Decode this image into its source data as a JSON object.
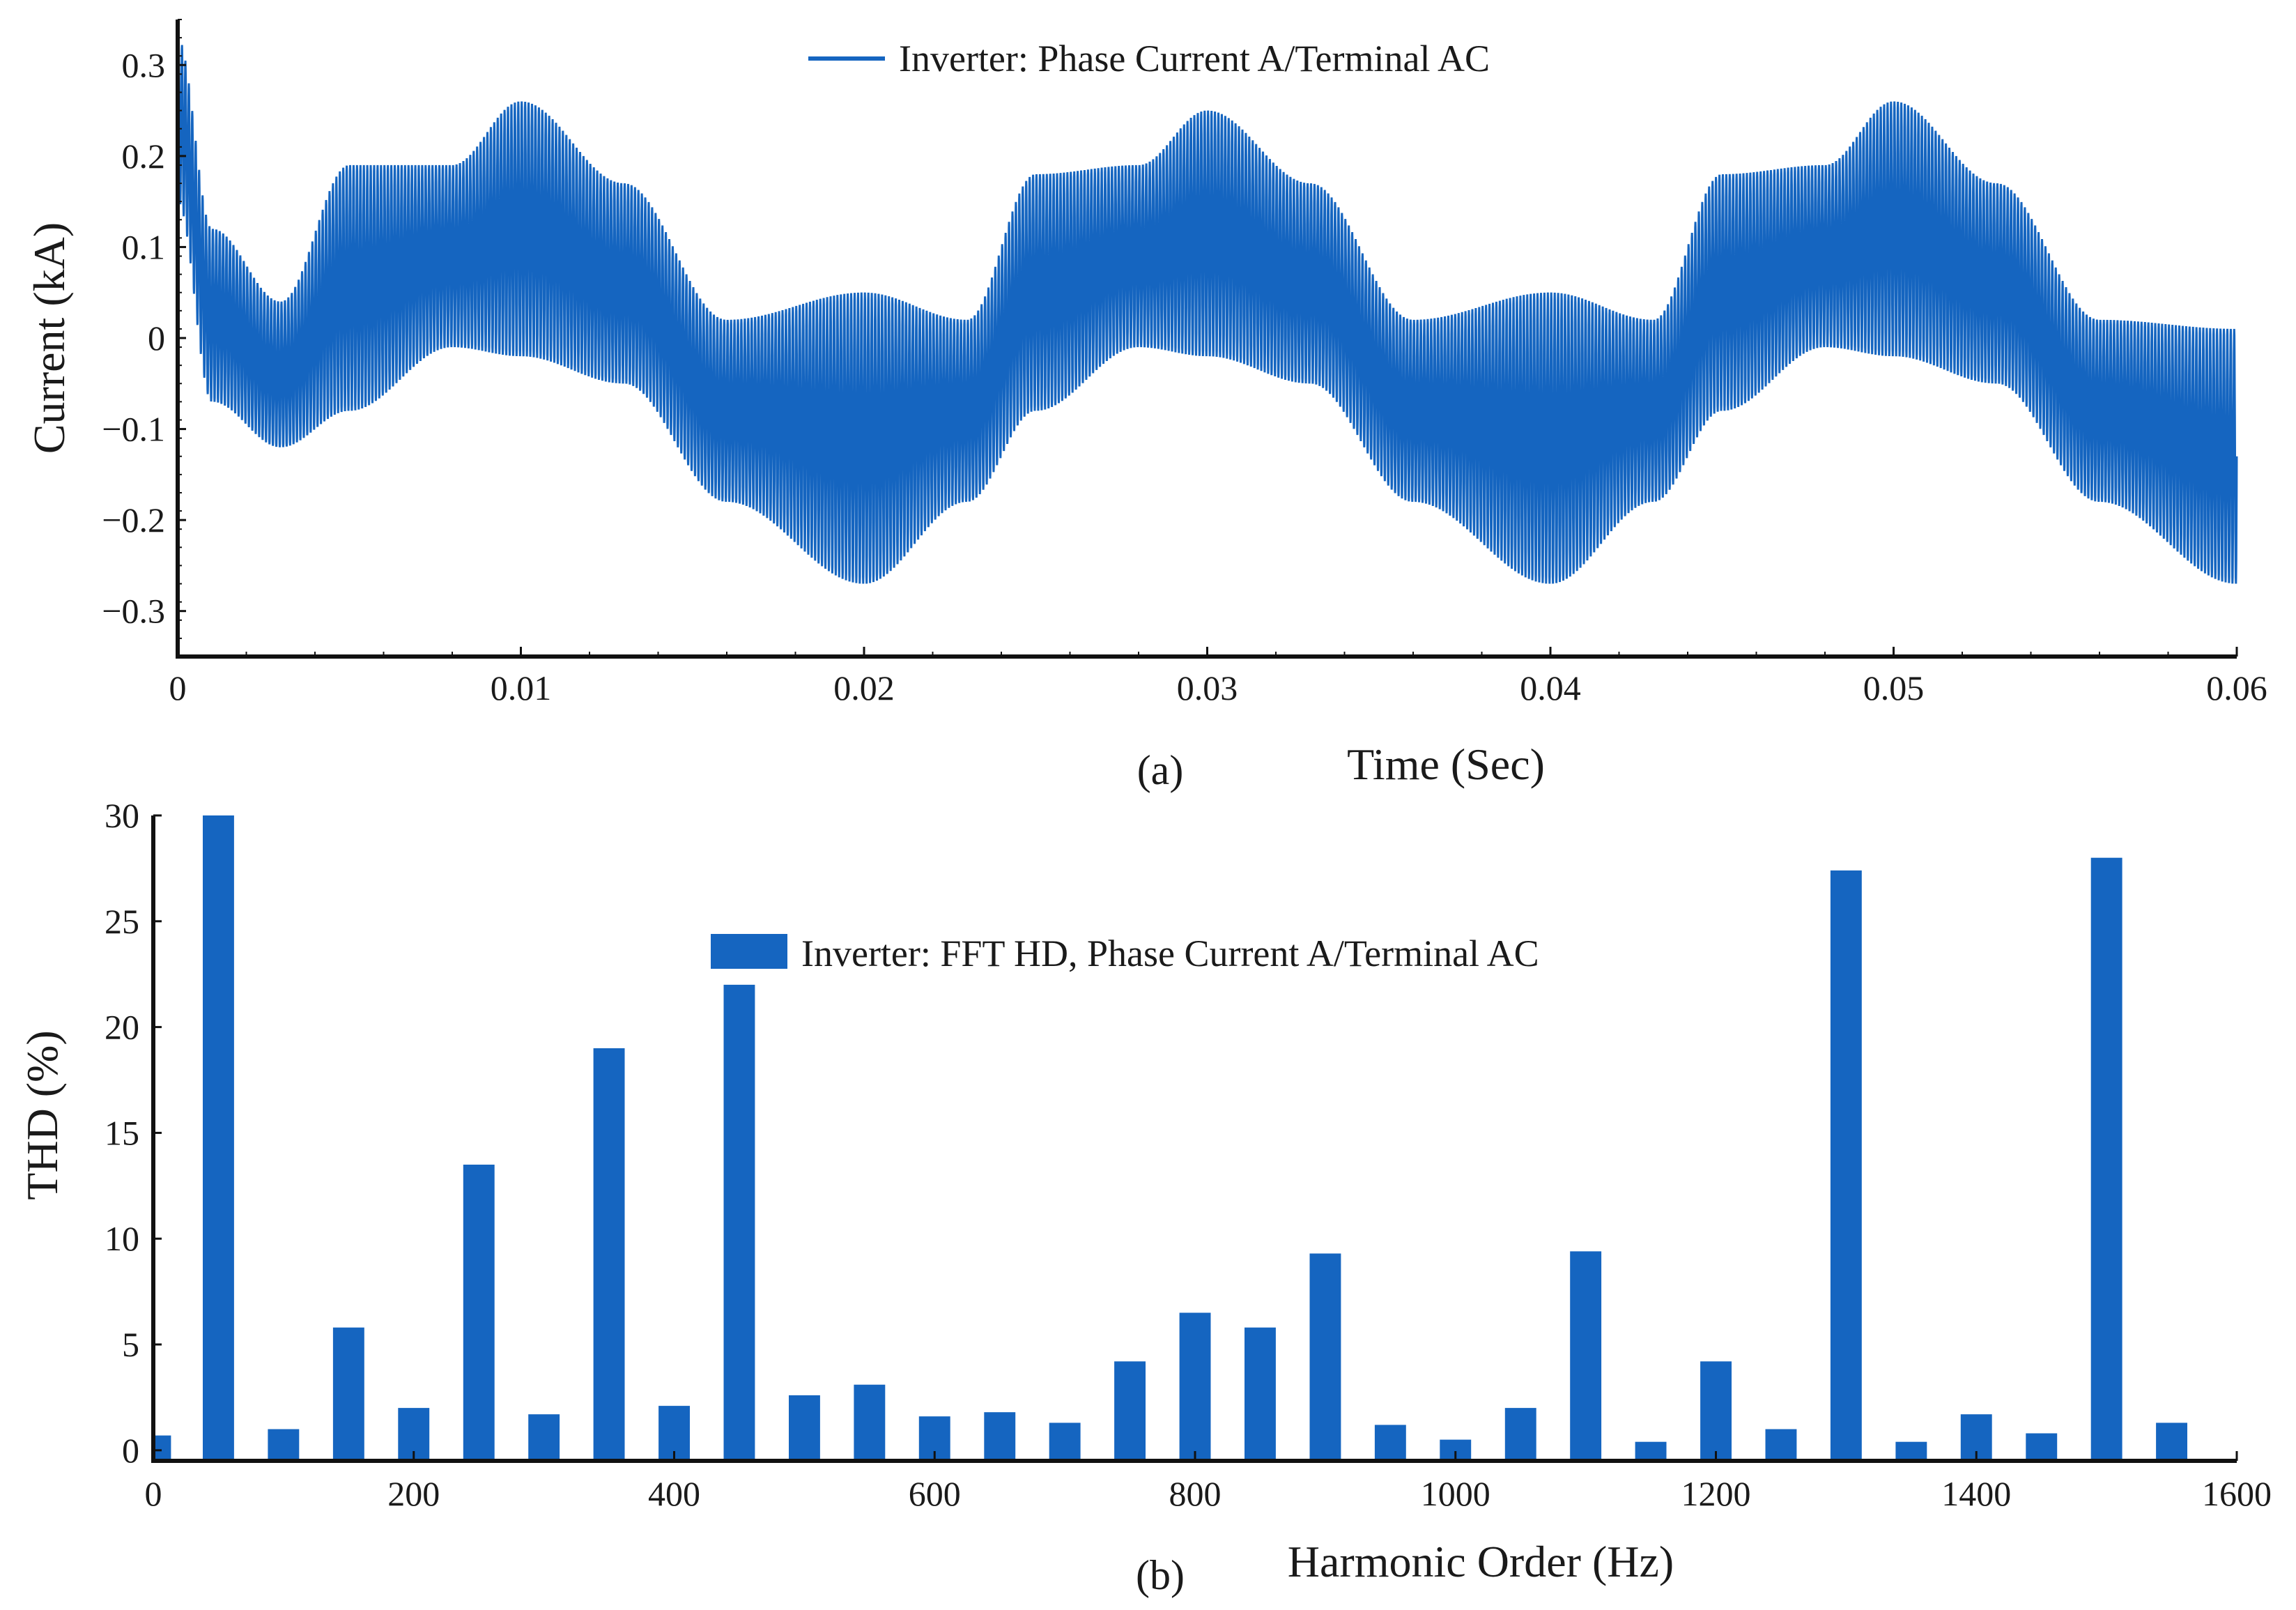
{
  "colors": {
    "series": "#1565C0",
    "axis": "#111111",
    "background": "#ffffff"
  },
  "chart_data": [
    {
      "id": "a",
      "type": "line",
      "panel_label": "(a)",
      "title": "",
      "xlabel": "Time (Sec)",
      "ylabel": "Current (kA)",
      "xlim": [
        0,
        0.06
      ],
      "ylim": [
        -0.35,
        0.35
      ],
      "x_ticks": [
        0,
        0.01,
        0.02,
        0.03,
        0.04,
        0.05,
        0.06
      ],
      "x_tick_labels": [
        "0",
        "0.01",
        "0.02",
        "0.03",
        "0.04",
        "0.05",
        "0.06"
      ],
      "y_ticks": [
        -0.3,
        -0.2,
        -0.1,
        0,
        0.1,
        0.2,
        0.3
      ],
      "y_tick_labels": [
        "−0.3",
        "−0.2",
        "−0.1",
        "0",
        "0.1",
        "0.2",
        "0.3"
      ],
      "legend": {
        "label": "Inverter: Phase Current A/Terminal AC",
        "placement": "top-center"
      },
      "grid": false,
      "series": [
        {
          "name": "Inverter: Phase Current A/Terminal AC",
          "description_samples": {
            "x": [
              0,
              0.001,
              0.003,
              0.005,
              0.008,
              0.01,
              0.013,
              0.016,
              0.02,
              0.023,
              0.025,
              0.028,
              0.03,
              0.033,
              0.036,
              0.04,
              0.043,
              0.045,
              0.048,
              0.05,
              0.053,
              0.056,
              0.06
            ],
            "upper_envelope": [
              0.33,
              0.12,
              0.04,
              0.19,
              0.19,
              0.26,
              0.17,
              0.02,
              0.05,
              0.02,
              0.18,
              0.19,
              0.25,
              0.17,
              0.02,
              0.05,
              0.02,
              0.18,
              0.19,
              0.26,
              0.17,
              0.02,
              0.01
            ],
            "lower_envelope": [
              0.15,
              -0.07,
              -0.12,
              -0.08,
              -0.01,
              -0.02,
              -0.05,
              -0.18,
              -0.27,
              -0.18,
              -0.08,
              -0.01,
              -0.02,
              -0.05,
              -0.18,
              -0.27,
              -0.18,
              -0.08,
              -0.01,
              -0.02,
              -0.05,
              -0.18,
              -0.27
            ]
          }
        }
      ]
    },
    {
      "id": "b",
      "type": "bar",
      "panel_label": "(b)",
      "title": "",
      "xlabel": "Harmonic Order (Hz)",
      "ylabel": "THD (%)",
      "xlim": [
        0,
        1600
      ],
      "ylim": [
        -0.5,
        30
      ],
      "x_ticks": [
        0,
        200,
        400,
        600,
        800,
        1000,
        1200,
        1400,
        1600
      ],
      "x_tick_labels": [
        "0",
        "200",
        "400",
        "600",
        "800",
        "1000",
        "1200",
        "1400",
        "1600"
      ],
      "y_ticks": [
        0,
        5,
        10,
        15,
        20,
        25,
        30
      ],
      "y_tick_labels": [
        "0",
        "5",
        "10",
        "15",
        "20",
        "25",
        "30"
      ],
      "legend": {
        "label": "Inverter: FFT HD, Phase Current A/Terminal AC",
        "placement": "top-center"
      },
      "grid": false,
      "categories": [
        0,
        50,
        100,
        150,
        200,
        250,
        300,
        350,
        400,
        450,
        500,
        550,
        600,
        650,
        700,
        750,
        800,
        850,
        900,
        950,
        1000,
        1050,
        1100,
        1150,
        1200,
        1250,
        1300,
        1350,
        1400,
        1450,
        1500,
        1550
      ],
      "values": [
        0.7,
        30.0,
        1.0,
        5.8,
        2.0,
        13.5,
        1.7,
        19.0,
        2.1,
        22.0,
        2.6,
        3.1,
        1.6,
        1.8,
        1.3,
        4.2,
        6.5,
        5.8,
        9.3,
        1.2,
        0.5,
        2.0,
        9.4,
        0.4,
        4.2,
        1.0,
        27.4,
        0.4,
        1.7,
        0.8,
        28.0,
        1.3
      ]
    }
  ]
}
